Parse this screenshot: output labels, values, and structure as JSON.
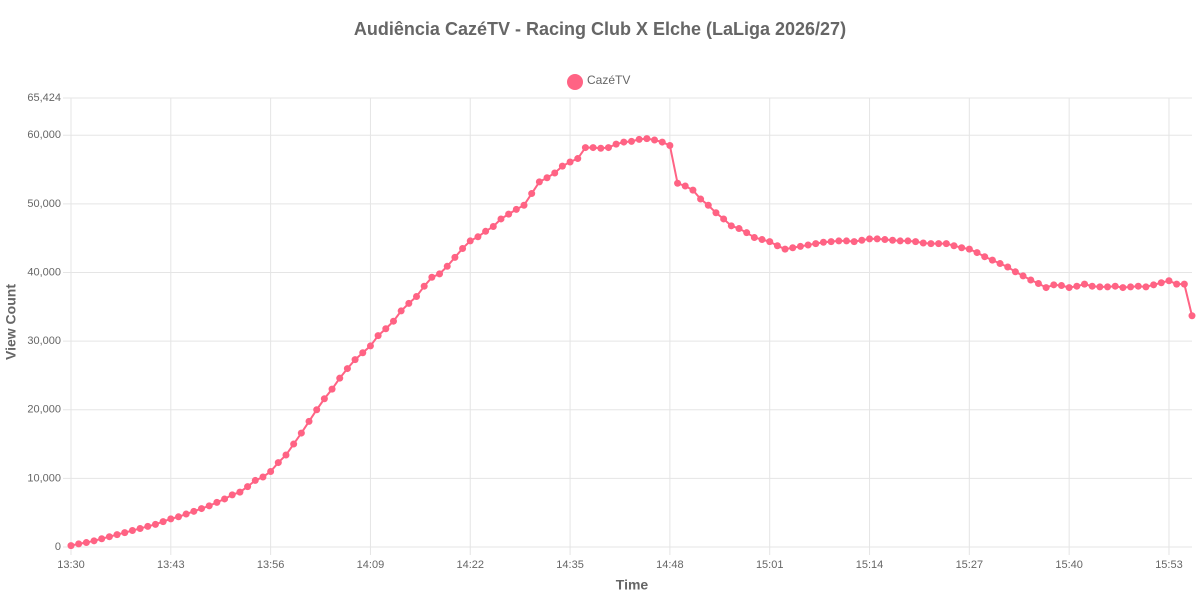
{
  "chart_data": {
    "type": "line",
    "title": "Audiência CazéTV - Racing Club X Elche (LaLiga 2026/27)",
    "xlabel": "Time",
    "ylabel": "View Count",
    "categories": [
      "13:30",
      null,
      null,
      null,
      null,
      null,
      null,
      null,
      null,
      null,
      null,
      null,
      null,
      "13:43",
      null,
      null,
      null,
      null,
      null,
      null,
      null,
      null,
      null,
      null,
      null,
      null,
      "13:56",
      null,
      null,
      null,
      null,
      null,
      null,
      null,
      null,
      null,
      null,
      null,
      null,
      "14:09",
      null,
      null,
      null,
      null,
      null,
      null,
      null,
      null,
      null,
      null,
      null,
      null,
      "14:22",
      null,
      null,
      null,
      null,
      null,
      null,
      null,
      null,
      null,
      null,
      null,
      null,
      "14:35",
      null,
      null,
      null,
      null,
      null,
      null,
      null,
      null,
      null,
      null,
      null,
      null,
      "14:48",
      null,
      null,
      null,
      null,
      null,
      null,
      null,
      null,
      null,
      null,
      null,
      null,
      "15:01",
      null,
      null,
      null,
      null,
      null,
      null,
      null,
      null,
      null,
      null,
      null,
      null,
      "15:14",
      null,
      null,
      null,
      null,
      null,
      null,
      null,
      null,
      null,
      null,
      null,
      null,
      "15:27",
      null,
      null,
      null,
      null,
      null,
      null,
      null,
      null,
      null,
      null,
      null,
      null,
      "15:40",
      null,
      null,
      null,
      null,
      null,
      null,
      null,
      null,
      null,
      null,
      null,
      null,
      "15:53",
      null,
      null,
      null
    ],
    "series": [
      {
        "name": "CazéTV",
        "color": "#ff6384",
        "values": [
          200,
          450,
          650,
          900,
          1200,
          1500,
          1800,
          2100,
          2400,
          2700,
          3000,
          3300,
          3700,
          4100,
          4400,
          4800,
          5200,
          5600,
          6000,
          6500,
          7000,
          7600,
          8000,
          8800,
          9700,
          10200,
          11000,
          12300,
          13400,
          15000,
          16600,
          18300,
          20000,
          21600,
          23000,
          24600,
          26000,
          27300,
          28300,
          29300,
          30800,
          31800,
          32900,
          34400,
          35500,
          36500,
          38000,
          39300,
          39800,
          40900,
          42200,
          43500,
          44600,
          45200,
          46000,
          46700,
          47800,
          48500,
          49200,
          49800,
          51500,
          53200,
          53800,
          54500,
          55500,
          56100,
          56600,
          58200,
          58200,
          58100,
          58200,
          58700,
          59000,
          59100,
          59400,
          59500,
          59300,
          59000,
          58500,
          53000,
          52600,
          52000,
          50700,
          49800,
          48700,
          47800,
          46800,
          46400,
          45800,
          45100,
          44800,
          44500,
          43900,
          43400,
          43600,
          43800,
          44000,
          44200,
          44400,
          44500,
          44600,
          44600,
          44500,
          44700,
          44900,
          44900,
          44800,
          44700,
          44600,
          44600,
          44500,
          44300,
          44200,
          44200,
          44200,
          43900,
          43600,
          43400,
          42900,
          42300,
          41800,
          41300,
          40800,
          40100,
          39500,
          38900,
          38400,
          37800,
          38200,
          38100,
          37800,
          38000,
          38300,
          38000,
          37900,
          37900,
          38000,
          37800,
          37900,
          38000,
          37900,
          38200,
          38500,
          38800,
          38300,
          38300,
          33700
        ]
      }
    ],
    "ylim": [
      0,
      65424
    ],
    "yticks": [
      0,
      {
        "value": 10000,
        "label": "10,000"
      },
      {
        "value": 20000,
        "label": "20,000"
      },
      {
        "value": 30000,
        "label": "30,000"
      },
      {
        "value": 40000,
        "label": "40,000"
      },
      {
        "value": 50000,
        "label": "50,000"
      },
      {
        "value": 60000,
        "label": "60,000"
      },
      {
        "value": 65424,
        "label": "65,424"
      }
    ],
    "grid": true,
    "legend": "top"
  }
}
